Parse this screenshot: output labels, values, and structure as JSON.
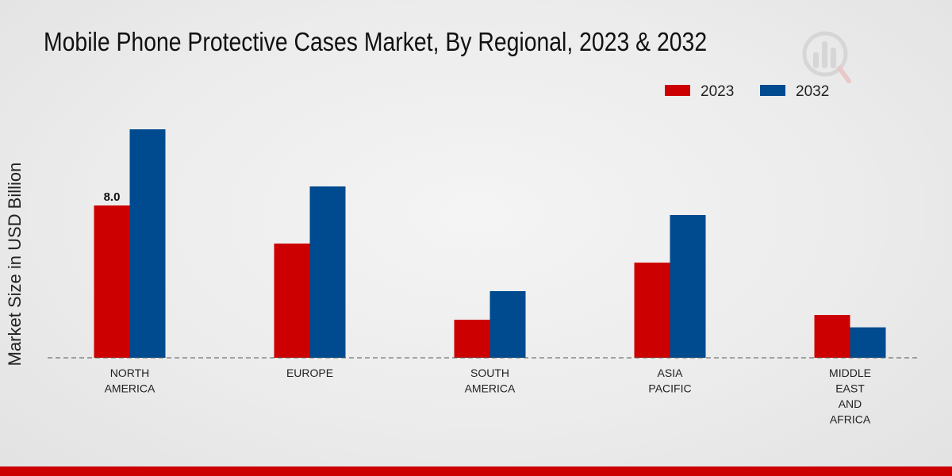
{
  "chart_data": {
    "type": "bar",
    "title": "Mobile Phone Protective Cases Market, By Regional, 2023 & 2032",
    "ylabel": "Market Size in USD Billion",
    "xlabel": "",
    "categories": [
      [
        "NORTH",
        "AMERICA"
      ],
      [
        "EUROPE"
      ],
      [
        "SOUTH",
        "AMERICA"
      ],
      [
        "ASIA",
        "PACIFIC"
      ],
      [
        "MIDDLE",
        "EAST",
        "AND",
        "AFRICA"
      ]
    ],
    "series": [
      {
        "name": "2023",
        "color": "#cc0000",
        "values": [
          8.0,
          6.0,
          2.0,
          5.0,
          2.25
        ]
      },
      {
        "name": "2032",
        "color": "#004a8f",
        "values": [
          12.0,
          9.0,
          3.5,
          7.5,
          1.6
        ]
      }
    ],
    "data_labels": [
      {
        "series": 0,
        "index": 0,
        "text": "8.0"
      }
    ],
    "ylim": [
      0,
      14
    ],
    "grid": false,
    "legend": "top-right"
  },
  "colors": {
    "accent": "#cc0000",
    "watermark": "#d9d9d9"
  }
}
